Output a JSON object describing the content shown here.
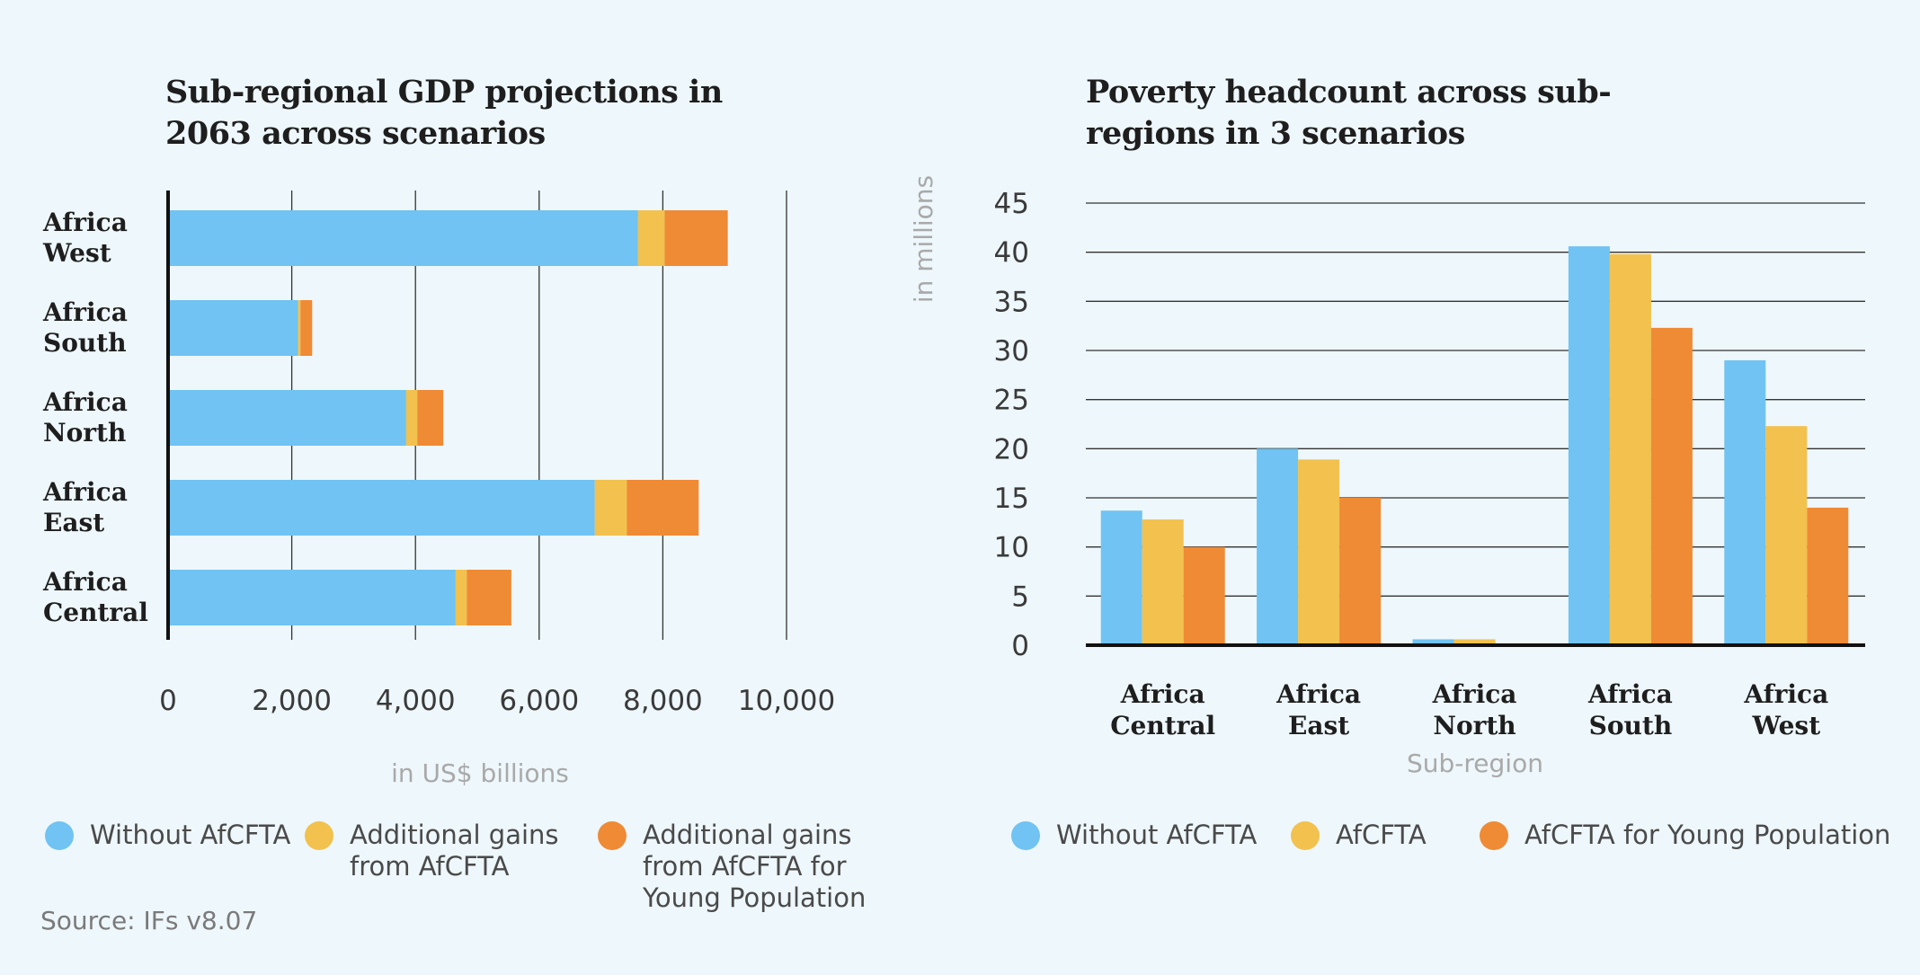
{
  "colors": {
    "without": "#70c3f2",
    "afcfta": "#f2c14e",
    "young": "#ef8a35",
    "grid": "#333333",
    "axis": "#111111",
    "muted_label": "#a9a9a9"
  },
  "left_title": "Sub-regional GDP projections in 2063 across scenarios",
  "right_title": "Poverty headcount across sub-regions in 3 scenarios",
  "source": "Source: IFs v8.07",
  "legend_left": [
    {
      "label": "Without AfCFTA",
      "color_key": "without"
    },
    {
      "label": "Additional gains from AfCFTA",
      "color_key": "afcfta"
    },
    {
      "label": "Additional gains from AfCFTA for Young Population",
      "color_key": "young"
    }
  ],
  "legend_right": [
    {
      "label": "Without AfCFTA",
      "color_key": "without"
    },
    {
      "label": "AfCFTA",
      "color_key": "afcfta"
    },
    {
      "label": "AfCFTA for Young Population",
      "color_key": "young"
    }
  ],
  "chart_data": [
    {
      "type": "bar",
      "orientation": "horizontal",
      "stacked": true,
      "title": "Sub-regional GDP projections in 2063 across scenarios",
      "categories": [
        "Africa West",
        "Africa South",
        "Africa North",
        "Africa East",
        "Africa Central"
      ],
      "series": [
        {
          "name": "Without AfCFTA",
          "values": [
            7600,
            2100,
            3850,
            6900,
            4650
          ]
        },
        {
          "name": "Additional gains from AfCFTA",
          "values": [
            430,
            40,
            180,
            520,
            180
          ]
        },
        {
          "name": "Additional gains from AfCFTA for Young Population",
          "values": [
            1020,
            190,
            420,
            1160,
            720
          ]
        }
      ],
      "xlabel": "in US$ billions",
      "xlim": [
        0,
        10000
      ],
      "xticks": [
        "0",
        "2,000",
        "4,000",
        "6,000",
        "8,000",
        "10,000"
      ],
      "grid": true,
      "legend": "bottom"
    },
    {
      "type": "bar",
      "orientation": "vertical",
      "stacked": false,
      "title": "Poverty headcount across sub-regions in 3 scenarios",
      "categories": [
        "Africa Central",
        "Africa East",
        "Africa North",
        "Africa South",
        "Africa West"
      ],
      "series": [
        {
          "name": "Without AfCFTA",
          "values": [
            13.7,
            20.0,
            0.6,
            40.6,
            29.0
          ]
        },
        {
          "name": "AfCFTA",
          "values": [
            12.8,
            18.9,
            0.6,
            39.8,
            22.3
          ]
        },
        {
          "name": "AfCFTA for Young Population",
          "values": [
            10.0,
            15.0,
            0.0,
            32.3,
            14.0
          ]
        }
      ],
      "xlabel": "Sub-region",
      "ylabel": "in millions",
      "ylim": [
        0,
        45
      ],
      "yticks": [
        "0",
        "5",
        "10",
        "15",
        "20",
        "25",
        "30",
        "35",
        "40",
        "45"
      ],
      "grid": true,
      "legend": "bottom"
    }
  ]
}
